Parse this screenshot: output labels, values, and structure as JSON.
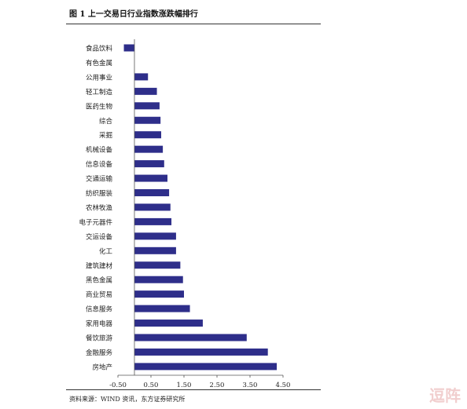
{
  "header": {
    "title": "图 1  上一交易日行业指数涨跌幅排行"
  },
  "footer": {
    "source": "资料来源：WIND 资讯，东方证券研究所"
  },
  "colors": {
    "bar": "#2e2e8a",
    "axis": "#555555",
    "text": "#222222"
  },
  "chart_data": {
    "type": "bar",
    "orientation": "horizontal",
    "title": "上一交易日行业指数涨跌幅排行",
    "xlabel": "",
    "ylabel": "",
    "xlim": [
      -0.5,
      4.5
    ],
    "xticks": [
      "-0.50",
      "0.50",
      "1.50",
      "2.50",
      "3.50",
      "4.50"
    ],
    "xtick_values": [
      -0.5,
      0.5,
      1.5,
      2.5,
      3.5,
      4.5
    ],
    "grid": false,
    "legend": "none",
    "categories": [
      "食品饮料",
      "有色金属",
      "公用事业",
      "轻工制造",
      "医药生物",
      "综合",
      "采掘",
      "机械设备",
      "信息设备",
      "交通运输",
      "纺织服装",
      "农林牧渔",
      "电子元器件",
      "交运设备",
      "化工",
      "建筑建材",
      "黑色金属",
      "商业贸易",
      "信息服务",
      "家用电器",
      "餐饮旅游",
      "金融服务",
      "房地产"
    ],
    "values": [
      -0.32,
      0.0,
      0.41,
      0.68,
      0.76,
      0.79,
      0.81,
      0.86,
      0.9,
      1.0,
      1.05,
      1.09,
      1.12,
      1.26,
      1.26,
      1.39,
      1.47,
      1.5,
      1.68,
      2.07,
      3.4,
      4.04,
      4.31
    ]
  }
}
